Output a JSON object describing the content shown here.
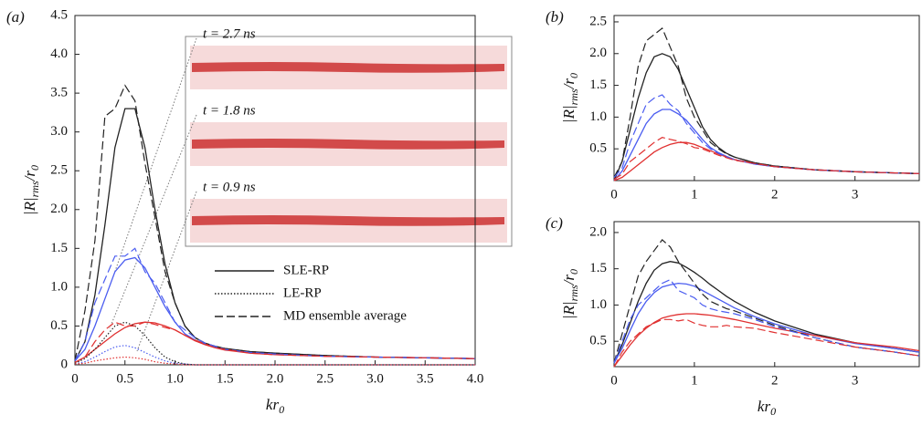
{
  "chart_data": [
    {
      "type": "line",
      "label": "(a)",
      "xlabel": [
        "kr",
        "0"
      ],
      "ylabel": [
        "|R|",
        "rms",
        "/r",
        "0"
      ],
      "xlim": [
        0,
        4
      ],
      "ylim": [
        0,
        4.5
      ],
      "xticks": [
        0,
        0.5,
        {
          "value": 1,
          "label": "1.0"
        },
        1.5,
        {
          "value": 2,
          "label": "2.0"
        },
        2.5,
        {
          "value": 3,
          "label": "3.0"
        },
        3.5,
        {
          "value": 4,
          "label": "4.0"
        }
      ],
      "yticks": [
        0,
        0.5,
        {
          "value": 1,
          "label": "1.0"
        },
        1.5,
        {
          "value": 2,
          "label": "2.0"
        },
        2.5,
        {
          "value": 3,
          "label": "3.0"
        },
        3.5,
        {
          "value": 4,
          "label": "4.0"
        },
        4.5
      ],
      "annotations": [
        "t = 2.7 ns",
        "t = 1.8 ns",
        "t = 0.9 ns"
      ],
      "legend": [
        {
          "label": "SLE-RP",
          "style": "solid"
        },
        {
          "label": "LE-RP",
          "style": "dotted"
        },
        {
          "label": "MD ensemble average",
          "style": "dashed"
        }
      ],
      "x": [
        0,
        0.1,
        0.2,
        0.3,
        0.4,
        0.5,
        0.6,
        0.7,
        0.8,
        0.9,
        1.0,
        1.1,
        1.2,
        1.3,
        1.4,
        1.5,
        1.75,
        2,
        2.5,
        3,
        3.5,
        4
      ],
      "series": [
        {
          "color": "#222222",
          "style": "solid",
          "values": [
            0.05,
            0.3,
            0.9,
            1.8,
            2.8,
            3.3,
            3.3,
            2.8,
            2.0,
            1.3,
            0.8,
            0.5,
            0.35,
            0.28,
            0.24,
            0.21,
            0.17,
            0.15,
            0.12,
            0.1,
            0.09,
            0.08
          ]
        },
        {
          "color": "#4a5cf0",
          "style": "solid",
          "values": [
            0.05,
            0.2,
            0.5,
            0.85,
            1.2,
            1.35,
            1.38,
            1.25,
            1.0,
            0.75,
            0.55,
            0.4,
            0.32,
            0.27,
            0.23,
            0.2,
            0.16,
            0.14,
            0.11,
            0.1,
            0.09,
            0.08
          ]
        },
        {
          "color": "#e03030",
          "style": "solid",
          "values": [
            0.03,
            0.1,
            0.2,
            0.3,
            0.4,
            0.48,
            0.53,
            0.55,
            0.54,
            0.5,
            0.45,
            0.38,
            0.31,
            0.26,
            0.22,
            0.19,
            0.15,
            0.13,
            0.11,
            0.1,
            0.09,
            0.08
          ]
        },
        {
          "color": "#222222",
          "style": "dotted",
          "values": [
            0.02,
            0.08,
            0.2,
            0.35,
            0.5,
            0.55,
            0.5,
            0.38,
            0.22,
            0.1,
            0.04,
            0.01,
            0,
            0,
            0,
            0,
            0,
            0,
            0,
            0,
            0,
            0
          ]
        },
        {
          "color": "#4a5cf0",
          "style": "dotted",
          "values": [
            0.01,
            0.04,
            0.1,
            0.17,
            0.23,
            0.25,
            0.22,
            0.16,
            0.1,
            0.05,
            0.02,
            0.01,
            0,
            0,
            0,
            0,
            0,
            0,
            0,
            0,
            0,
            0
          ]
        },
        {
          "color": "#e03030",
          "style": "dotted",
          "values": [
            0.01,
            0.02,
            0.05,
            0.07,
            0.09,
            0.1,
            0.09,
            0.07,
            0.04,
            0.02,
            0.01,
            0,
            0,
            0,
            0,
            0,
            0,
            0,
            0,
            0,
            0,
            0
          ]
        },
        {
          "color": "#222222",
          "style": "dashed",
          "values": [
            0.05,
            0.7,
            1.6,
            3.2,
            3.3,
            3.6,
            3.4,
            2.6,
            1.9,
            1.2,
            0.8,
            0.5,
            0.35,
            0.28,
            0.24,
            0.21,
            0.17,
            0.15,
            0.12,
            0.1,
            0.09,
            0.08
          ]
        },
        {
          "color": "#4a5cf0",
          "style": "dashed",
          "values": [
            0.05,
            0.3,
            0.8,
            1.1,
            1.4,
            1.4,
            1.5,
            1.2,
            1.05,
            0.8,
            0.55,
            0.45,
            0.35,
            0.28,
            0.24,
            0.2,
            0.16,
            0.14,
            0.11,
            0.1,
            0.09,
            0.08
          ]
        },
        {
          "color": "#e03030",
          "style": "dashed",
          "values": [
            0.03,
            0.1,
            0.3,
            0.45,
            0.55,
            0.5,
            0.5,
            0.55,
            0.52,
            0.48,
            0.45,
            0.38,
            0.32,
            0.27,
            0.22,
            0.2,
            0.15,
            0.13,
            0.11,
            0.1,
            0.09,
            0.08
          ]
        }
      ]
    },
    {
      "type": "line",
      "label": "(b)",
      "ylabel": [
        "|R|",
        "rms",
        "/r",
        "0"
      ],
      "xlim": [
        0,
        3.8
      ],
      "ylim": [
        0,
        2.6
      ],
      "xticks": [
        0,
        1,
        2,
        3
      ],
      "yticks": [
        0.5,
        {
          "value": 1,
          "label": "1.0"
        },
        1.5,
        {
          "value": 2,
          "label": "2.0"
        },
        2.5
      ],
      "x": [
        0,
        0.1,
        0.2,
        0.3,
        0.4,
        0.5,
        0.6,
        0.7,
        0.8,
        0.9,
        1.0,
        1.1,
        1.2,
        1.3,
        1.4,
        1.5,
        1.75,
        2,
        2.5,
        3,
        3.5,
        3.8
      ],
      "series": [
        {
          "color": "#222222",
          "style": "solid",
          "values": [
            0,
            0.3,
            0.8,
            1.3,
            1.7,
            1.95,
            2.0,
            1.95,
            1.75,
            1.45,
            1.15,
            0.85,
            0.65,
            0.52,
            0.43,
            0.37,
            0.28,
            0.23,
            0.17,
            0.14,
            0.12,
            0.11
          ]
        },
        {
          "color": "#4a5cf0",
          "style": "solid",
          "values": [
            0,
            0.15,
            0.4,
            0.65,
            0.9,
            1.05,
            1.12,
            1.12,
            1.05,
            0.95,
            0.8,
            0.65,
            0.52,
            0.44,
            0.38,
            0.33,
            0.26,
            0.22,
            0.17,
            0.14,
            0.12,
            0.11
          ]
        },
        {
          "color": "#e03030",
          "style": "solid",
          "values": [
            0,
            0.05,
            0.15,
            0.25,
            0.35,
            0.45,
            0.52,
            0.57,
            0.6,
            0.6,
            0.57,
            0.52,
            0.47,
            0.42,
            0.37,
            0.33,
            0.27,
            0.22,
            0.17,
            0.14,
            0.12,
            0.11
          ]
        },
        {
          "color": "#222222",
          "style": "dashed",
          "values": [
            0.05,
            0.3,
            1.0,
            1.8,
            2.2,
            2.3,
            2.4,
            2.1,
            1.8,
            1.3,
            1.0,
            0.8,
            0.6,
            0.5,
            0.42,
            0.37,
            0.28,
            0.23,
            0.17,
            0.14,
            0.12,
            0.11
          ]
        },
        {
          "color": "#4a5cf0",
          "style": "dashed",
          "values": [
            0.05,
            0.2,
            0.6,
            0.9,
            1.2,
            1.3,
            1.35,
            1.2,
            1.1,
            0.9,
            0.75,
            0.6,
            0.5,
            0.43,
            0.37,
            0.33,
            0.26,
            0.22,
            0.17,
            0.14,
            0.12,
            0.11
          ]
        },
        {
          "color": "#e03030",
          "style": "dashed",
          "values": [
            0.02,
            0.1,
            0.3,
            0.4,
            0.5,
            0.6,
            0.68,
            0.65,
            0.62,
            0.58,
            0.52,
            0.5,
            0.45,
            0.4,
            0.36,
            0.32,
            0.27,
            0.22,
            0.17,
            0.14,
            0.12,
            0.11
          ]
        }
      ]
    },
    {
      "type": "line",
      "label": "(c)",
      "xlabel": [
        "kr",
        "0"
      ],
      "ylabel": [
        "|R|",
        "rms",
        "/r",
        "0"
      ],
      "xlim": [
        0,
        3.8
      ],
      "ylim": [
        0.15,
        2.15
      ],
      "xticks": [
        0,
        1,
        2,
        3
      ],
      "yticks": [
        0.5,
        {
          "value": 1,
          "label": "1.0"
        },
        1.5,
        {
          "value": 2,
          "label": "2.0"
        }
      ],
      "x": [
        0,
        0.1,
        0.2,
        0.3,
        0.4,
        0.5,
        0.6,
        0.7,
        0.8,
        0.9,
        1.0,
        1.1,
        1.2,
        1.3,
        1.4,
        1.5,
        1.75,
        2,
        2.5,
        3,
        3.5,
        3.8
      ],
      "series": [
        {
          "color": "#222222",
          "style": "solid",
          "values": [
            0.2,
            0.45,
            0.75,
            1.05,
            1.3,
            1.48,
            1.57,
            1.6,
            1.58,
            1.52,
            1.45,
            1.37,
            1.28,
            1.2,
            1.12,
            1.05,
            0.9,
            0.78,
            0.6,
            0.48,
            0.4,
            0.35
          ]
        },
        {
          "color": "#4a5cf0",
          "style": "solid",
          "values": [
            0.2,
            0.4,
            0.65,
            0.88,
            1.05,
            1.17,
            1.25,
            1.28,
            1.3,
            1.29,
            1.26,
            1.2,
            1.14,
            1.08,
            1.02,
            0.96,
            0.84,
            0.74,
            0.58,
            0.47,
            0.4,
            0.35
          ]
        },
        {
          "color": "#e03030",
          "style": "solid",
          "values": [
            0.15,
            0.3,
            0.45,
            0.58,
            0.68,
            0.76,
            0.82,
            0.85,
            0.87,
            0.88,
            0.88,
            0.87,
            0.86,
            0.84,
            0.82,
            0.8,
            0.74,
            0.68,
            0.58,
            0.48,
            0.42,
            0.37
          ]
        },
        {
          "color": "#222222",
          "style": "dashed",
          "values": [
            0.2,
            0.6,
            1.0,
            1.4,
            1.6,
            1.75,
            1.9,
            1.8,
            1.6,
            1.45,
            1.3,
            1.15,
            1.05,
            1.0,
            0.95,
            0.92,
            0.82,
            0.72,
            0.55,
            0.42,
            0.35,
            0.3
          ]
        },
        {
          "color": "#4a5cf0",
          "style": "dashed",
          "values": [
            0.2,
            0.5,
            0.8,
            1.0,
            1.1,
            1.2,
            1.3,
            1.35,
            1.2,
            1.15,
            1.1,
            1.0,
            0.95,
            0.92,
            0.9,
            0.88,
            0.8,
            0.7,
            0.55,
            0.42,
            0.35,
            0.3
          ]
        },
        {
          "color": "#e03030",
          "style": "dashed",
          "values": [
            0.15,
            0.35,
            0.5,
            0.6,
            0.7,
            0.75,
            0.8,
            0.8,
            0.78,
            0.8,
            0.75,
            0.72,
            0.7,
            0.7,
            0.72,
            0.7,
            0.68,
            0.62,
            0.52,
            0.42,
            0.35,
            0.3
          ]
        }
      ]
    }
  ]
}
